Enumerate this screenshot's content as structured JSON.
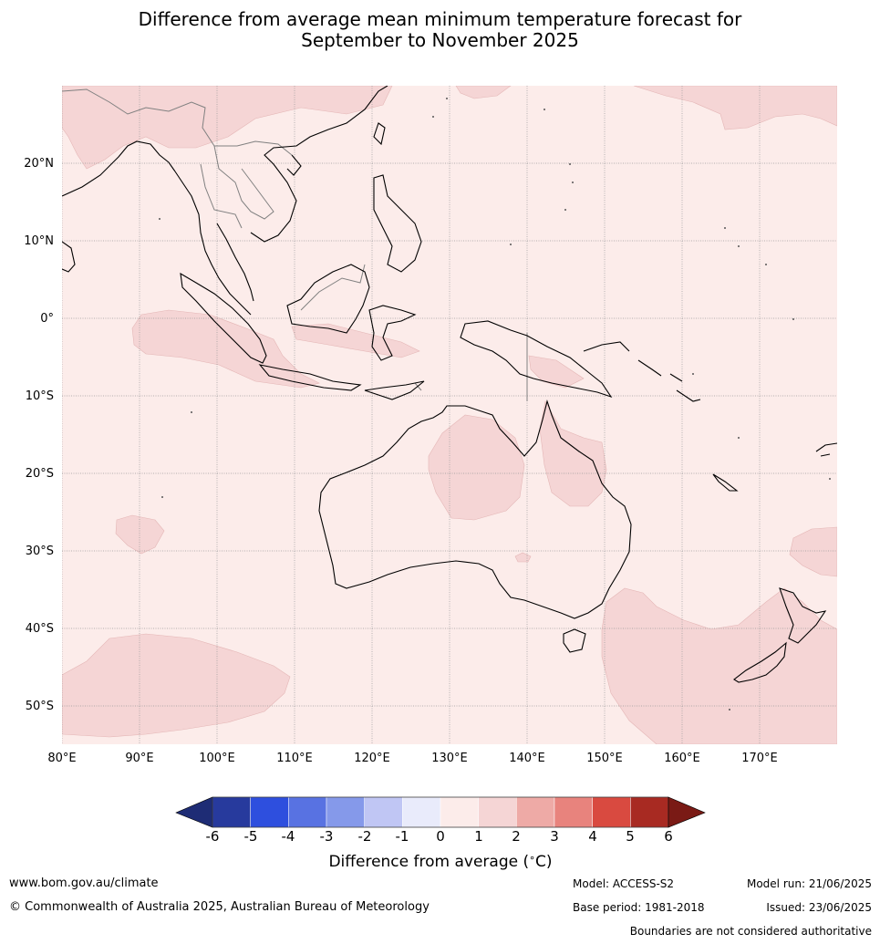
{
  "title": {
    "line1": "Difference from average mean minimum temperature forecast for",
    "line2": "September to November 2025"
  },
  "map": {
    "lon_ticks": [
      "80°E",
      "90°E",
      "100°E",
      "110°E",
      "120°E",
      "130°E",
      "140°E",
      "150°E",
      "160°E",
      "170°E"
    ],
    "lat_ticks": [
      "20°N",
      "10°N",
      "0°",
      "10°S",
      "20°S",
      "30°S",
      "40°S",
      "50°S"
    ],
    "colors": {
      "ocean_base": "#fcecea",
      "warm_anomaly": "#f5d5d5",
      "coast": "#000000",
      "border": "#808080",
      "grid": "#999999"
    }
  },
  "colorbar": {
    "tick_labels": [
      "-6",
      "-5",
      "-4",
      "-3",
      "-2",
      "-1",
      "0",
      "1",
      "2",
      "3",
      "4",
      "5",
      "6"
    ],
    "label": "Difference from average ($^\\circ$C)",
    "label_text": "Difference from average (",
    "label_unit": "C)",
    "colors": [
      "#273a9d",
      "#2e4fde",
      "#5872e2",
      "#8599ea",
      "#c0c6f4",
      "#e9ebfb",
      "#fcecea",
      "#f5d5d5",
      "#eeaaa6",
      "#e8837d",
      "#d94a40",
      "#a82a22"
    ],
    "under_color": "#1e2c75",
    "over_color": "#7a1a15"
  },
  "footer": {
    "website": "www.bom.gov.au/climate",
    "copyright": "© Commonwealth of Australia 2025, Australian Bureau of Meteorology",
    "model": "Model: ACCESS-S2",
    "base_period": "Base period: 1981-2018",
    "model_run": "Model run: 21/06/2025",
    "issued": "Issued: 23/06/2025",
    "disclaimer": "Boundaries are not considered authoritative"
  }
}
